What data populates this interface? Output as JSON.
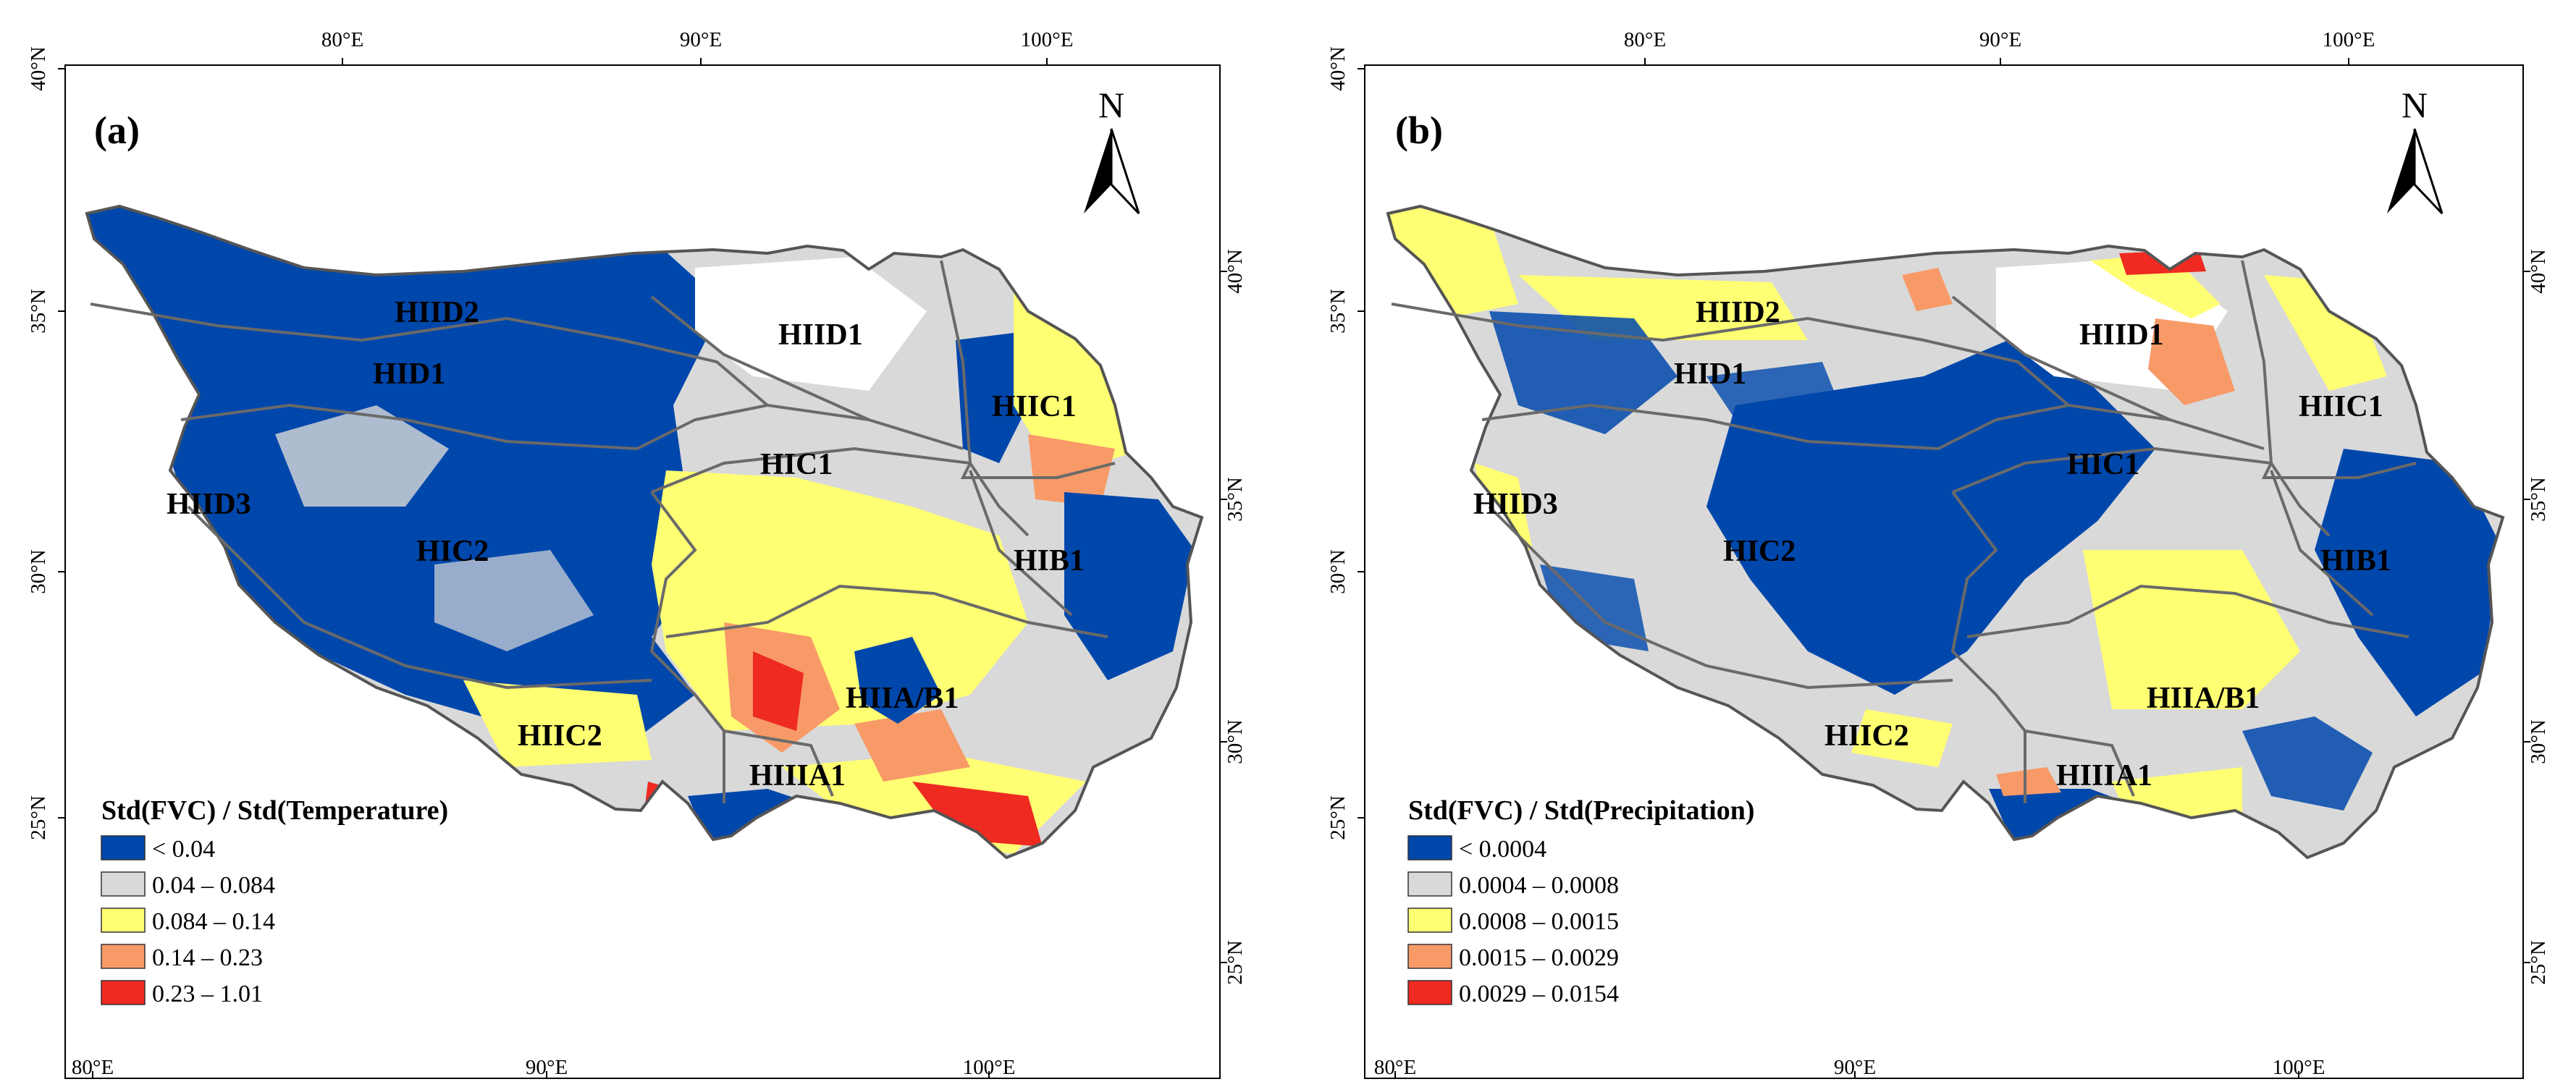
{
  "colors": {
    "class1": "#0047ab",
    "class2": "#d9d9d9",
    "class3": "#ffff73",
    "class4": "#f89a68",
    "class5": "#ee2a21",
    "boundary": "#555555"
  },
  "north_arrow_label": "N",
  "panels": [
    {
      "label": "(a)",
      "top_ticks": [
        "80°E",
        "90°E",
        "100°E"
      ],
      "bottom_ticks": [
        "80°E",
        "90°E",
        "100°E"
      ],
      "left_ticks": [
        "40°N",
        "35°N",
        "30°N",
        "25°N"
      ],
      "right_ticks": [
        "40°N",
        "35°N",
        "30°N",
        "25°N"
      ],
      "regions": [
        "HIID2",
        "HID1",
        "HIID1",
        "HIIC1",
        "HIID3",
        "HIC1",
        "HIC2",
        "HIB1",
        "HIIA/B1",
        "HIIC2",
        "HIIIA1"
      ],
      "legend": {
        "title": "Std(FVC) / Std(Temperature)",
        "items": [
          "< 0.04",
          "0.04 – 0.084",
          "0.084 – 0.14",
          "0.14 – 0.23",
          "0.23 – 1.01"
        ]
      }
    },
    {
      "label": "(b)",
      "top_ticks": [
        "80°E",
        "90°E",
        "100°E"
      ],
      "bottom_ticks": [
        "80°E",
        "90°E",
        "100°E"
      ],
      "left_ticks": [
        "40°N",
        "35°N",
        "30°N",
        "25°N"
      ],
      "right_ticks": [
        "40°N",
        "35°N",
        "30°N",
        "25°N"
      ],
      "regions": [
        "HIID2",
        "HID1",
        "HIID1",
        "HIIC1",
        "HIID3",
        "HIC1",
        "HIC2",
        "HIB1",
        "HIIA/B1",
        "HIIC2",
        "HIIIA1"
      ],
      "legend": {
        "title": "Std(FVC) / Std(Precipitation)",
        "items": [
          "< 0.0004",
          "0.0004 – 0.0008",
          "0.0008 – 0.0015",
          "0.0015 – 0.0029",
          "0.0029 – 0.0154"
        ]
      }
    }
  ]
}
